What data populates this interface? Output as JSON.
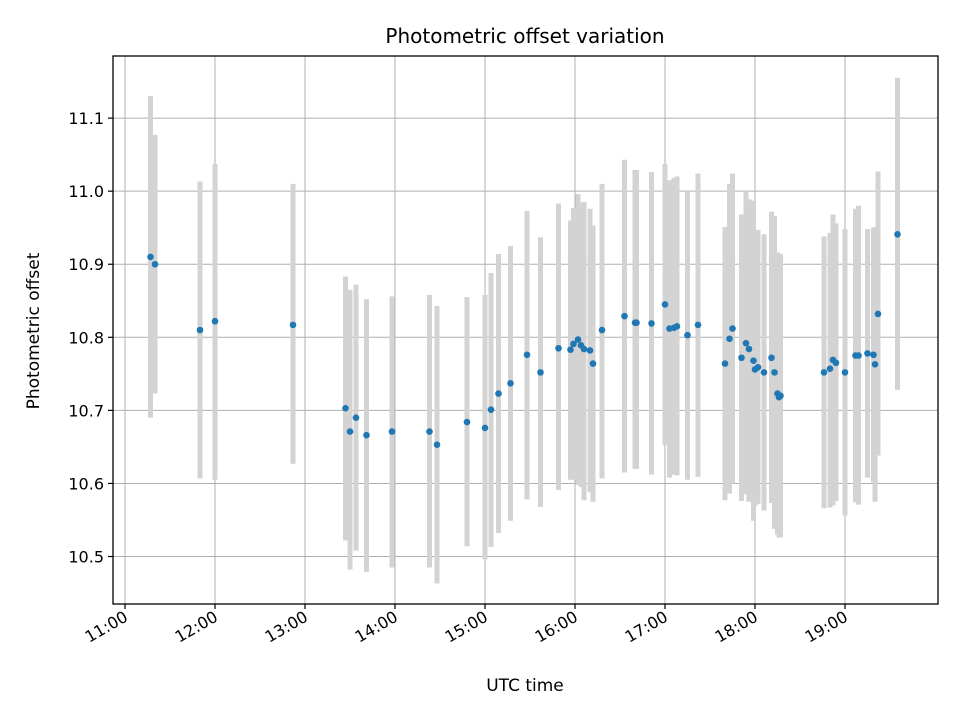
{
  "chart_data": {
    "type": "scatter",
    "title": "Photometric offset variation",
    "xlabel": "UTC time",
    "ylabel": "Photometric offset",
    "xlim": [
      "10:52",
      "20:02"
    ],
    "ylim": [
      10.435,
      11.185
    ],
    "x_ticks": [
      "11:00",
      "12:00",
      "13:00",
      "14:00",
      "15:00",
      "16:00",
      "17:00",
      "18:00",
      "19:00"
    ],
    "y_ticks": [
      10.5,
      10.6,
      10.7,
      10.8,
      10.9,
      11.0,
      11.1
    ],
    "y_tick_labels": [
      "10.5",
      "10.6",
      "10.7",
      "10.8",
      "10.9",
      "11.0",
      "11.1"
    ],
    "grid": true,
    "colors": {
      "point": "#1f77b4",
      "errorbar": "#d3d3d3",
      "grid": "#b0b0b0"
    },
    "series": [
      {
        "x": [
          "11:17",
          "11:20",
          "11:50",
          "12:00",
          "12:52",
          "13:27",
          "13:30",
          "13:34",
          "13:41",
          "13:58",
          "14:23",
          "14:28",
          "14:48",
          "15:00",
          "15:04",
          "15:09",
          "15:17",
          "15:28",
          "15:37",
          "15:49",
          "15:57",
          "15:59",
          "16:02",
          "16:04",
          "16:06",
          "16:10",
          "16:12",
          "16:18",
          "16:33",
          "16:40",
          "16:41",
          "16:51",
          "17:00",
          "17:03",
          "17:06",
          "17:08",
          "17:15",
          "17:22",
          "17:40",
          "17:43",
          "17:45",
          "17:51",
          "17:54",
          "17:56",
          "17:59",
          "18:00",
          "18:02",
          "18:06",
          "18:11",
          "18:13",
          "18:15",
          "18:16",
          "18:17",
          "18:46",
          "18:50",
          "18:52",
          "18:54",
          "19:00",
          "19:07",
          "19:09",
          "19:15",
          "19:19",
          "19:20",
          "19:22",
          "19:35"
        ],
        "y": [
          10.91,
          10.9,
          10.81,
          10.822,
          10.817,
          10.703,
          10.671,
          10.69,
          10.666,
          10.671,
          10.671,
          10.653,
          10.684,
          10.676,
          10.701,
          10.723,
          10.737,
          10.776,
          10.752,
          10.785,
          10.783,
          10.791,
          10.797,
          10.789,
          10.784,
          10.782,
          10.764,
          10.81,
          10.829,
          10.82,
          10.82,
          10.819,
          10.845,
          10.812,
          10.813,
          10.815,
          10.803,
          10.817,
          10.764,
          10.798,
          10.812,
          10.772,
          10.792,
          10.784,
          10.768,
          10.756,
          10.759,
          10.752,
          10.772,
          10.752,
          10.723,
          10.718,
          10.72,
          10.752,
          10.757,
          10.769,
          10.765,
          10.752,
          10.775,
          10.775,
          10.778,
          10.776,
          10.763,
          10.832,
          10.941
        ],
        "err_low": [
          10.69,
          10.723,
          10.607,
          10.605,
          10.627,
          10.522,
          10.482,
          10.508,
          10.479,
          10.485,
          10.485,
          10.463,
          10.514,
          10.496,
          10.513,
          10.532,
          10.549,
          10.578,
          10.568,
          10.591,
          10.605,
          10.605,
          10.598,
          10.595,
          10.577,
          10.588,
          10.575,
          10.607,
          10.615,
          10.62,
          10.62,
          10.612,
          10.653,
          10.608,
          10.612,
          10.611,
          10.605,
          10.609,
          10.577,
          10.586,
          10.6,
          10.576,
          10.585,
          10.575,
          10.549,
          10.569,
          10.572,
          10.563,
          10.573,
          10.538,
          10.53,
          10.526,
          10.526,
          10.566,
          10.567,
          10.57,
          10.576,
          10.556,
          10.574,
          10.571,
          10.608,
          10.602,
          10.575,
          10.638,
          10.728
        ],
        "err_high": [
          11.13,
          11.077,
          11.013,
          11.037,
          11.01,
          10.883,
          10.865,
          10.872,
          10.852,
          10.856,
          10.858,
          10.843,
          10.855,
          10.858,
          10.888,
          10.914,
          10.925,
          10.973,
          10.937,
          10.983,
          10.96,
          10.977,
          10.996,
          10.984,
          10.985,
          10.976,
          10.953,
          11.01,
          11.043,
          11.029,
          11.029,
          11.026,
          11.037,
          11.015,
          11.018,
          11.02,
          11.0,
          11.024,
          10.951,
          11.01,
          11.024,
          10.968,
          11.0,
          10.989,
          10.987,
          10.943,
          10.947,
          10.941,
          10.972,
          10.966,
          10.916,
          10.912,
          10.914,
          10.938,
          10.943,
          10.968,
          10.956,
          10.948,
          10.976,
          10.98,
          10.948,
          10.95,
          10.951,
          11.027,
          11.155
        ]
      }
    ]
  }
}
